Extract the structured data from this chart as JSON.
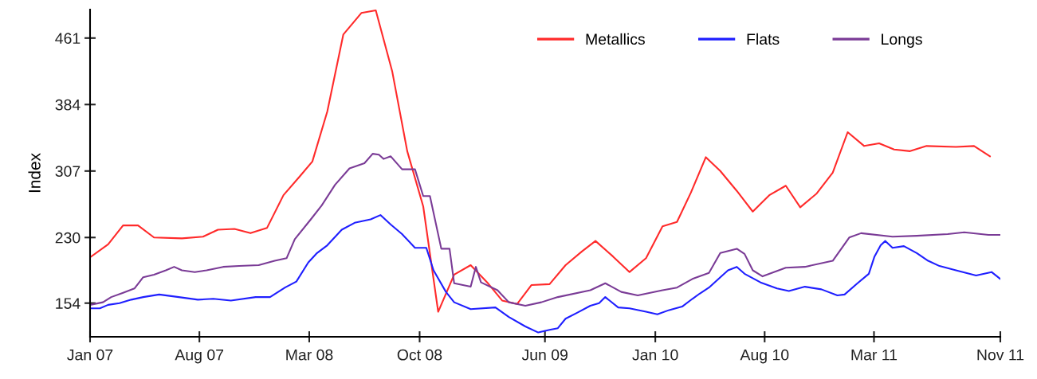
{
  "chart_data": {
    "type": "line",
    "ylabel": "Index",
    "xlim": [
      "2007-01-01",
      "2011-11-01"
    ],
    "xticks": [
      {
        "value": "2007-01",
        "label": "Jan 07"
      },
      {
        "value": "2007-08",
        "label": "Aug 07"
      },
      {
        "value": "2008-03",
        "label": "Mar 08"
      },
      {
        "value": "2008-10",
        "label": "Oct 08"
      },
      {
        "value": "2009-06",
        "label": "Jun 09"
      },
      {
        "value": "2010-01",
        "label": "Jan 10"
      },
      {
        "value": "2010-08",
        "label": "Aug 10"
      },
      {
        "value": "2011-03",
        "label": "Mar 11"
      },
      {
        "value": "2011-11",
        "label": "Nov 11"
      }
    ],
    "ylim": [
      115,
      494
    ],
    "yticks": [
      154,
      230,
      307,
      384,
      461
    ],
    "grid": false,
    "legend": "top right",
    "line_style": "solid",
    "marker": "none",
    "series": [
      {
        "name": "Metallics",
        "color": "#ff2a2a",
        "x": [
          "2007-01-01",
          "2007-02-05",
          "2007-03-06",
          "2007-04-04",
          "2007-05-05",
          "2007-06-28",
          "2007-08-08",
          "2007-09-06",
          "2007-10-08",
          "2007-11-08",
          "2007-12-10",
          "2008-01-11",
          "2008-02-12",
          "2008-03-07",
          "2008-04-05",
          "2008-05-06",
          "2008-06-10",
          "2008-07-08",
          "2008-08-09",
          "2008-09-07",
          "2008-10-08",
          "2008-11-06",
          "2008-12-07",
          "2009-01-08",
          "2009-02-09",
          "2009-03-10",
          "2009-04-08",
          "2009-05-06",
          "2009-06-10",
          "2009-07-11",
          "2009-08-12",
          "2009-09-07",
          "2009-10-11",
          "2009-11-12",
          "2009-12-14",
          "2010-01-15",
          "2010-02-12",
          "2010-03-11",
          "2010-04-09",
          "2010-05-07",
          "2010-06-08",
          "2010-07-09",
          "2010-08-10",
          "2010-09-11",
          "2010-10-09",
          "2010-11-10",
          "2010-12-11",
          "2011-01-09",
          "2011-02-10",
          "2011-03-11",
          "2011-04-09",
          "2011-05-10",
          "2011-06-11",
          "2011-08-07",
          "2011-09-11",
          "2011-10-12"
        ],
        "values": [
          207,
          222,
          244,
          244,
          230,
          229,
          231,
          239,
          240,
          235,
          241,
          279,
          301,
          318,
          376,
          465,
          490,
          493,
          422,
          330,
          266,
          144,
          187,
          198,
          178,
          157,
          153,
          175,
          176,
          198,
          214,
          226,
          208,
          190,
          206,
          243,
          248,
          282,
          323,
          307,
          284,
          260,
          279,
          290,
          265,
          281,
          305,
          352,
          336,
          339,
          332,
          330,
          336,
          335,
          336,
          324
        ]
      },
      {
        "name": "Flats",
        "color": "#1f1fff",
        "x": [
          "2007-01-01",
          "2007-01-20",
          "2007-02-05",
          "2007-02-27",
          "2007-03-22",
          "2007-04-14",
          "2007-05-15",
          "2007-06-22",
          "2007-07-29",
          "2007-08-28",
          "2007-10-01",
          "2007-11-18",
          "2007-12-16",
          "2008-01-14",
          "2008-02-05",
          "2008-02-28",
          "2008-03-16",
          "2008-04-05",
          "2008-05-03",
          "2008-05-28",
          "2008-06-28",
          "2008-07-17",
          "2008-08-06",
          "2008-08-28",
          "2008-09-22",
          "2008-10-14",
          "2008-10-28",
          "2008-11-21",
          "2008-12-07",
          "2009-01-08",
          "2009-02-25",
          "2009-03-23",
          "2009-04-24",
          "2009-05-19",
          "2009-06-10",
          "2009-06-26",
          "2009-07-11",
          "2009-08-03",
          "2009-08-28",
          "2009-09-14",
          "2009-09-26",
          "2009-10-21",
          "2009-11-12",
          "2009-12-14",
          "2010-01-05",
          "2010-01-28",
          "2010-02-22",
          "2010-03-14",
          "2010-03-28",
          "2010-04-15",
          "2010-05-07",
          "2010-05-22",
          "2010-06-08",
          "2010-06-23",
          "2010-07-24",
          "2010-08-25",
          "2010-09-17",
          "2010-10-18",
          "2010-11-19",
          "2010-12-20",
          "2011-01-03",
          "2011-01-28",
          "2011-02-19",
          "2011-03-02",
          "2011-03-14",
          "2011-03-23",
          "2011-04-06",
          "2011-04-28",
          "2011-05-23",
          "2011-06-14",
          "2011-07-06",
          "2011-08-07",
          "2011-09-15",
          "2011-10-15",
          "2011-11-01"
        ],
        "values": [
          148,
          148,
          152,
          154,
          158,
          161,
          164,
          161,
          158,
          159,
          157,
          161,
          161,
          172,
          179,
          201,
          212,
          221,
          239,
          247,
          251,
          256,
          245,
          234,
          218,
          218,
          192,
          167,
          155,
          147,
          149,
          138,
          127,
          120,
          123,
          125,
          136,
          143,
          151,
          154,
          161,
          149,
          148,
          144,
          141,
          146,
          150,
          159,
          165,
          172,
          184,
          192,
          196,
          188,
          178,
          171,
          168,
          173,
          170,
          163,
          164,
          177,
          188,
          208,
          221,
          226,
          218,
          220,
          212,
          203,
          197,
          192,
          186,
          190,
          182
        ]
      },
      {
        "name": "Longs",
        "color": "#7a3b96",
        "x": [
          "2007-01-01",
          "2007-01-26",
          "2007-02-11",
          "2007-03-06",
          "2007-03-28",
          "2007-04-14",
          "2007-05-05",
          "2007-05-28",
          "2007-06-13",
          "2007-06-28",
          "2007-07-23",
          "2007-08-15",
          "2007-09-16",
          "2007-10-17",
          "2007-11-24",
          "2007-12-25",
          "2008-01-17",
          "2008-02-02",
          "2008-03-04",
          "2008-03-25",
          "2008-04-20",
          "2008-05-18",
          "2008-06-16",
          "2008-07-02",
          "2008-07-14",
          "2008-07-23",
          "2008-08-06",
          "2008-08-28",
          "2008-09-22",
          "2008-10-08",
          "2008-10-21",
          "2008-11-12",
          "2008-11-28",
          "2008-12-07",
          "2009-01-08",
          "2009-01-18",
          "2009-01-28",
          "2009-03-01",
          "2009-03-23",
          "2009-04-24",
          "2009-05-25",
          "2009-06-26",
          "2009-08-28",
          "2009-09-26",
          "2009-10-27",
          "2009-11-28",
          "2010-01-15",
          "2010-02-12",
          "2010-03-14",
          "2010-04-15",
          "2010-05-07",
          "2010-06-08",
          "2010-06-23",
          "2010-07-09",
          "2010-07-28",
          "2010-09-11",
          "2010-10-18",
          "2010-12-11",
          "2011-01-12",
          "2011-02-04",
          "2011-04-06",
          "2011-05-23",
          "2011-07-22",
          "2011-08-23",
          "2011-10-09",
          "2011-11-01"
        ],
        "values": [
          152,
          155,
          161,
          166,
          171,
          184,
          187,
          192,
          196,
          192,
          190,
          192,
          196,
          197,
          198,
          203,
          206,
          228,
          251,
          267,
          291,
          310,
          316,
          327,
          326,
          321,
          324,
          309,
          309,
          278,
          278,
          217,
          217,
          177,
          173,
          196,
          178,
          169,
          155,
          151,
          155,
          161,
          169,
          177,
          167,
          163,
          169,
          172,
          182,
          189,
          212,
          217,
          211,
          192,
          185,
          195,
          196,
          203,
          230,
          235,
          231,
          232,
          234,
          236,
          233,
          233
        ]
      }
    ]
  }
}
